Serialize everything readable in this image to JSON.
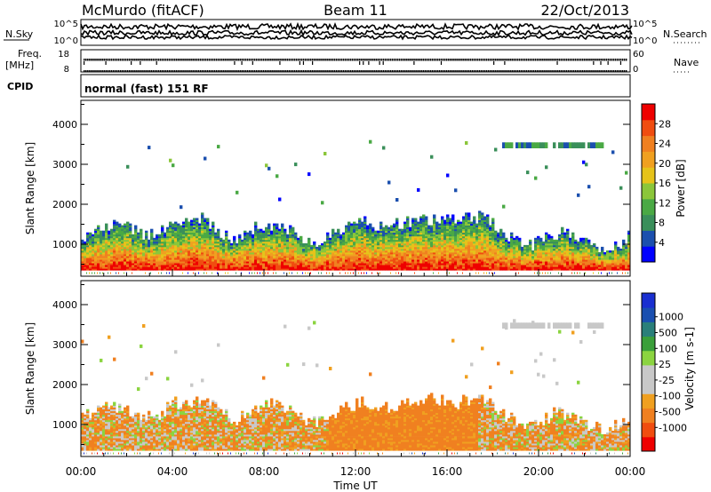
{
  "header": {
    "station": "McMurdo (fitACF)",
    "beam": "Beam 11",
    "date": "22/Oct/2013"
  },
  "top_panels": {
    "nsky_label": "N.Sky",
    "nsearch_label": "N.Search",
    "nsky_ticks": [
      "10^5",
      "10^0"
    ],
    "nsearch_ticks": [
      "10^5",
      "10^0"
    ],
    "freq_label_1": "Freq.",
    "freq_label_2": "[MHz]",
    "freq_ticks": [
      "18",
      "8"
    ],
    "nave_label": "Nave",
    "nave_ticks": [
      "60",
      "0"
    ],
    "cpid_label": "CPID",
    "cpid_text": "normal (fast) 151 RF"
  },
  "colors": {
    "power": [
      "#0000ff",
      "#1b4fae",
      "#3a8f5a",
      "#4aa944",
      "#8bc63a",
      "#e6c31a",
      "#f0a020",
      "#f08020",
      "#f04d10",
      "#ee0000"
    ],
    "velocity": [
      "#ee0000",
      "#f04d10",
      "#f08020",
      "#f0a020",
      "#c8c8c8",
      "#c8c8c8",
      "#8bd440",
      "#3a9f3a",
      "#2a7f7a",
      "#1a4fb0",
      "#1a2fd0"
    ]
  },
  "chart_data": [
    {
      "type": "heatmap",
      "title": "",
      "xlabel": "Time UT",
      "ylabel": "Slant Range [km]",
      "x_ticks": [
        "00:00",
        "04:00",
        "08:00",
        "12:00",
        "16:00",
        "20:00",
        "00:00"
      ],
      "y_ticks": [
        "1000",
        "2000",
        "3000",
        "4000"
      ],
      "ylim": [
        200,
        4600
      ],
      "colorbar": {
        "label": "Power [dB]",
        "ticks": [
          "4",
          "8",
          "12",
          "16",
          "20",
          "24",
          "28"
        ],
        "range": [
          0,
          32
        ]
      }
    },
    {
      "type": "heatmap",
      "title": "",
      "xlabel": "Time UT",
      "ylabel": "Slant Range [km]",
      "x_ticks": [
        "00:00",
        "04:00",
        "08:00",
        "12:00",
        "16:00",
        "20:00",
        "00:00"
      ],
      "y_ticks": [
        "1000",
        "2000",
        "3000",
        "4000"
      ],
      "ylim": [
        200,
        4600
      ],
      "colorbar": {
        "label": "Velocity [m s-1]",
        "ticks": [
          "1000",
          "500",
          "100",
          "25",
          "-25",
          "-100",
          "-500",
          "-1000"
        ]
      }
    }
  ]
}
